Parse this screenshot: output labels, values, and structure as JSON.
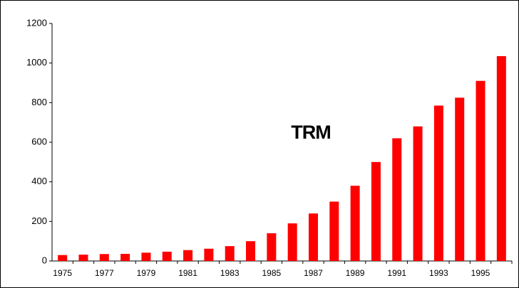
{
  "chart_data": {
    "type": "bar",
    "annotation": "TRM",
    "categories": [
      "1975",
      null,
      "1977",
      null,
      "1979",
      null,
      "1981",
      null,
      "1983",
      null,
      "1985",
      null,
      "1987",
      null,
      "1989",
      null,
      "1991",
      null,
      "1993",
      null,
      "1995",
      null
    ],
    "values": [
      30,
      32,
      35,
      36,
      42,
      47,
      55,
      62,
      75,
      100,
      140,
      190,
      240,
      300,
      380,
      500,
      620,
      680,
      785,
      825,
      910,
      1035
    ],
    "color": "#ff0000",
    "ylim": [
      0,
      1200
    ],
    "yticks": [
      0,
      200,
      400,
      600,
      800,
      1000,
      1200
    ],
    "grid": false
  }
}
